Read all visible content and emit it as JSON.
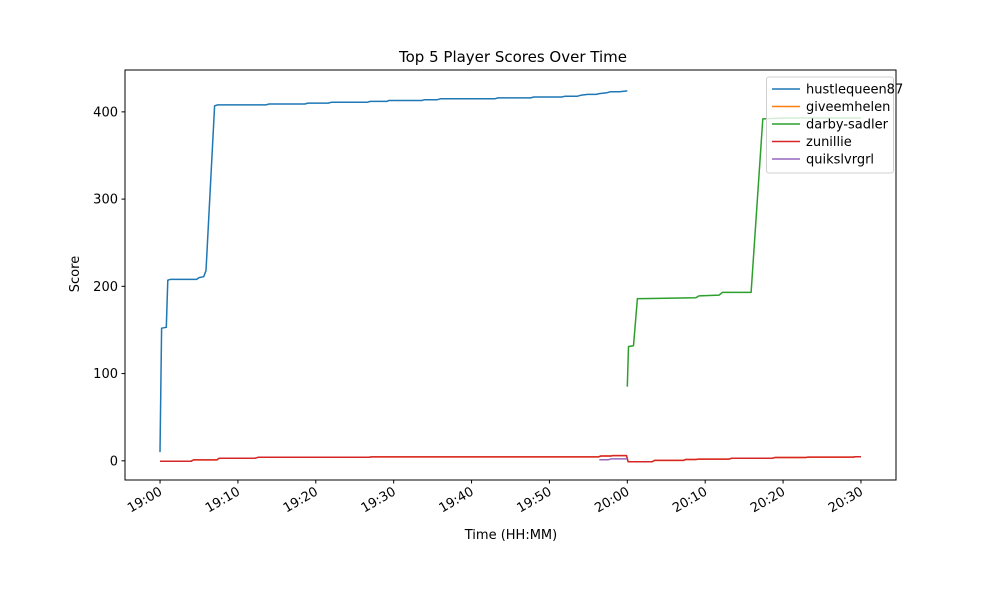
{
  "figure": {
    "background": "#ffffff",
    "spine_color": "#000000",
    "legend_border_color": "#cfcfcf"
  },
  "chart_data": {
    "type": "line",
    "title": "Top 5 Player Scores Over Time",
    "xlabel": "Time (HH:MM)",
    "ylabel": "Score",
    "x_base_time": "19:00",
    "xlim_minutes": [
      -4.5,
      94.5
    ],
    "ylim": [
      -22,
      448
    ],
    "grid": false,
    "legend_position": "upper right",
    "x_ticks": [
      {
        "minute": 0,
        "label": "19:00"
      },
      {
        "minute": 10,
        "label": "19:10"
      },
      {
        "minute": 20,
        "label": "19:20"
      },
      {
        "minute": 30,
        "label": "19:30"
      },
      {
        "minute": 40,
        "label": "19:40"
      },
      {
        "minute": 50,
        "label": "19:50"
      },
      {
        "minute": 60,
        "label": "20:00"
      },
      {
        "minute": 70,
        "label": "20:10"
      },
      {
        "minute": 80,
        "label": "20:20"
      },
      {
        "minute": 90,
        "label": "20:30"
      }
    ],
    "y_ticks": [
      0,
      100,
      200,
      300,
      400
    ],
    "series": [
      {
        "name": "hustlequeen87",
        "color": "#1f77b4",
        "points": [
          [
            0,
            10
          ],
          [
            0.2,
            152
          ],
          [
            0.8,
            153
          ],
          [
            1.0,
            207
          ],
          [
            1.3,
            208
          ],
          [
            4.7,
            208
          ],
          [
            5.0,
            210
          ],
          [
            5.6,
            211
          ],
          [
            5.9,
            218
          ],
          [
            7.0,
            407
          ],
          [
            7.4,
            408
          ],
          [
            13.6,
            408
          ],
          [
            14.0,
            409
          ],
          [
            18.6,
            409
          ],
          [
            19.0,
            410
          ],
          [
            21.6,
            410
          ],
          [
            22.0,
            411
          ],
          [
            26.6,
            411
          ],
          [
            27.0,
            412
          ],
          [
            29.1,
            412
          ],
          [
            29.4,
            413
          ],
          [
            33.6,
            413
          ],
          [
            34.0,
            414
          ],
          [
            35.6,
            414
          ],
          [
            36.0,
            415
          ],
          [
            43.0,
            415
          ],
          [
            43.4,
            416
          ],
          [
            47.6,
            416
          ],
          [
            48.0,
            417
          ],
          [
            51.6,
            417
          ],
          [
            52.0,
            418
          ],
          [
            53.6,
            418
          ],
          [
            54.0,
            419
          ],
          [
            54.9,
            420
          ],
          [
            56.0,
            420
          ],
          [
            56.4,
            421
          ],
          [
            57.4,
            422
          ],
          [
            57.8,
            423
          ],
          [
            59.0,
            423
          ],
          [
            60.0,
            424
          ]
        ]
      },
      {
        "name": "giveemhelen",
        "color": "#ff7f0e",
        "points": [
          [
            0,
            -0.5
          ],
          [
            4.0,
            -0.5
          ],
          [
            4.3,
            1
          ],
          [
            7.3,
            1
          ],
          [
            7.6,
            3
          ],
          [
            12.2,
            3
          ],
          [
            12.6,
            4
          ],
          [
            26.8,
            4
          ],
          [
            27.2,
            4.5
          ],
          [
            56.3,
            4.5
          ],
          [
            56.6,
            5.5
          ],
          [
            57.9,
            5.5
          ],
          [
            58.1,
            6
          ],
          [
            59.9,
            6
          ],
          [
            60.1,
            -1
          ],
          [
            63.2,
            -1
          ],
          [
            63.5,
            0.5
          ],
          [
            67.2,
            0.5
          ],
          [
            67.5,
            1.5
          ],
          [
            68.8,
            1.5
          ],
          [
            69.1,
            2
          ],
          [
            73.1,
            2
          ],
          [
            73.4,
            3
          ],
          [
            78.6,
            3
          ],
          [
            79.0,
            3.8
          ],
          [
            82.9,
            3.8
          ],
          [
            83.2,
            4.3
          ],
          [
            89.0,
            4.3
          ],
          [
            89.3,
            4.7
          ],
          [
            90.0,
            4.7
          ]
        ]
      },
      {
        "name": "darby-sadler",
        "color": "#2ca02c",
        "points": [
          [
            60.0,
            85
          ],
          [
            60.15,
            131
          ],
          [
            60.8,
            132
          ],
          [
            61.3,
            186
          ],
          [
            62.0,
            186
          ],
          [
            68.8,
            187
          ],
          [
            69.2,
            189
          ],
          [
            71.8,
            190
          ],
          [
            72.2,
            193
          ],
          [
            75.9,
            193
          ],
          [
            77.4,
            392
          ],
          [
            80.0,
            393
          ],
          [
            90.0,
            393
          ]
        ]
      },
      {
        "name": "zunillie",
        "color": "#d62728",
        "points": [
          [
            0,
            -0.5
          ],
          [
            4.0,
            -0.5
          ],
          [
            4.3,
            1
          ],
          [
            7.3,
            1
          ],
          [
            7.6,
            3
          ],
          [
            12.2,
            3
          ],
          [
            12.6,
            4
          ],
          [
            26.8,
            4
          ],
          [
            27.2,
            4.5
          ],
          [
            56.3,
            4.5
          ],
          [
            56.6,
            5.5
          ],
          [
            57.9,
            5.5
          ],
          [
            58.1,
            6
          ],
          [
            59.9,
            6
          ],
          [
            60.1,
            -1
          ],
          [
            63.2,
            -1
          ],
          [
            63.5,
            0.5
          ],
          [
            67.2,
            0.5
          ],
          [
            67.5,
            1.5
          ],
          [
            68.8,
            1.5
          ],
          [
            69.1,
            2
          ],
          [
            73.1,
            2
          ],
          [
            73.4,
            3
          ],
          [
            78.6,
            3
          ],
          [
            79.0,
            3.8
          ],
          [
            82.9,
            3.8
          ],
          [
            83.2,
            4.3
          ],
          [
            89.0,
            4.3
          ],
          [
            89.3,
            4.7
          ],
          [
            90.0,
            4.7
          ]
        ]
      },
      {
        "name": "quikslvrgrl",
        "color": "#9467bd",
        "points": [
          [
            56.4,
            1.3
          ],
          [
            57.6,
            1.3
          ],
          [
            57.9,
            2.2
          ],
          [
            60.0,
            2.2
          ]
        ]
      }
    ]
  }
}
